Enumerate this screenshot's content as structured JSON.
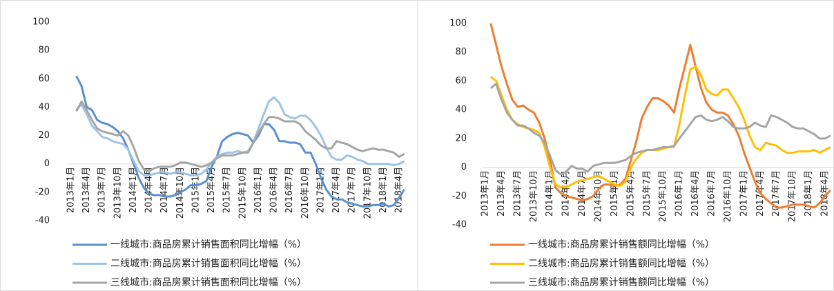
{
  "chart_data": [
    {
      "type": "line",
      "categories": [
        "2013年1月",
        null,
        null,
        "2013年4月",
        null,
        null,
        "2013年7月",
        null,
        null,
        "2013年10月",
        null,
        null,
        "2014年1月",
        null,
        null,
        "2014年4月",
        null,
        null,
        "2014年7月",
        null,
        null,
        "2014年10月",
        null,
        null,
        "2015年1月",
        null,
        null,
        "2015年4月",
        null,
        null,
        "2015年7月",
        null,
        null,
        "2015年10月",
        null,
        null,
        "2016年1月",
        null,
        null,
        "2016年4月",
        null,
        null,
        "2016年7月",
        null,
        null,
        "2016年10月",
        null,
        null,
        "2017年1月",
        null,
        null,
        "2017年4月",
        null,
        null,
        "2017年7月",
        null,
        null,
        "2017年10月",
        null,
        null,
        "2018年1月",
        null,
        null,
        "2018年4月",
        null
      ],
      "ylim": [
        -40,
        100
      ],
      "yticks": [
        -40,
        -20,
        0,
        20,
        40,
        60,
        80,
        100
      ],
      "series": [
        {
          "name": "一线城市:商品房累计销售面积同比增幅（%）",
          "color": "#5b8fcf",
          "values": [
            null,
            62,
            55,
            40,
            38,
            31,
            29,
            28,
            26,
            23,
            18,
            10,
            0,
            -10,
            -17,
            -21,
            -22,
            -22,
            -23,
            -23,
            -22,
            -20,
            -18,
            -15,
            -15,
            -14,
            -12,
            -2,
            5,
            16,
            19,
            21,
            22,
            21,
            20,
            15,
            20,
            28,
            28,
            24,
            16,
            16,
            15,
            15,
            14,
            8,
            8,
            0,
            -10,
            -18,
            -23,
            -25,
            -25,
            -27,
            -28,
            -29,
            -30,
            -30,
            -29,
            -29,
            -28,
            -30,
            -29,
            -24,
            -18
          ]
        },
        {
          "name": "二线城市:商品房累计销售面积同比增幅（%）",
          "color": "#9dc3e6",
          "values": [
            null,
            38,
            42,
            35,
            27,
            23,
            19,
            18,
            16,
            15,
            14,
            10,
            2,
            -5,
            -8,
            -8,
            -7,
            -6,
            -6,
            -7,
            -6,
            -6,
            -7,
            -8,
            -8,
            -7,
            -4,
            1,
            5,
            7,
            8,
            8,
            9,
            8,
            9,
            15,
            25,
            35,
            44,
            47,
            43,
            35,
            33,
            32,
            34,
            34,
            31,
            26,
            20,
            12,
            5,
            3,
            3,
            6,
            5,
            3,
            2,
            0,
            0,
            0,
            0,
            0,
            -1,
            0,
            2
          ]
        },
        {
          "name": "三线城市:商品房累计销售面积同比增幅（%）",
          "color": "#a5a5a5",
          "values": [
            null,
            37,
            44,
            38,
            31,
            25,
            23,
            22,
            21,
            20,
            23,
            20,
            12,
            2,
            -4,
            -5,
            -3,
            -2,
            -2,
            -2,
            -1,
            1,
            1,
            0,
            -1,
            -2,
            -1,
            1,
            4,
            6,
            6,
            6,
            7,
            8,
            8,
            15,
            22,
            28,
            33,
            33,
            32,
            30,
            30,
            30,
            28,
            23,
            20,
            17,
            13,
            11,
            11,
            16,
            15,
            14,
            12,
            10,
            9,
            10,
            11,
            10,
            10,
            9,
            8,
            5,
            7
          ]
        }
      ]
    },
    {
      "type": "line",
      "categories": [
        "2013年1月",
        null,
        null,
        "2013年4月",
        null,
        null,
        "2013年7月",
        null,
        null,
        "2013年10月",
        null,
        null,
        "2014年1月",
        null,
        null,
        "2014年4月",
        null,
        null,
        "2014年7月",
        null,
        null,
        "2014年10月",
        null,
        null,
        "2015年1月",
        null,
        null,
        "2015年4月",
        null,
        null,
        "2015年7月",
        null,
        null,
        "2015年10月",
        null,
        null,
        "2016年1月",
        null,
        null,
        "2016年4月",
        null,
        null,
        "2016年7月",
        null,
        null,
        "2016年10月",
        null,
        null,
        "2017年1月",
        null,
        null,
        "2017年4月",
        null,
        null,
        "2017年7月",
        null,
        null,
        "2017年10月",
        null,
        null,
        "2018年1月",
        null,
        null,
        "2018年4月",
        null
      ],
      "ylim": [
        -40,
        100
      ],
      "yticks": [
        -40,
        -20,
        0,
        20,
        40,
        60,
        80,
        100
      ],
      "series": [
        {
          "name": "一线城市:商品房累计销售额同比增幅（%）",
          "color": "#ed7d31",
          "values": [
            null,
            100,
            85,
            70,
            58,
            47,
            42,
            43,
            40,
            38,
            31,
            20,
            5,
            -14,
            -18,
            -20,
            -21,
            -22,
            -23,
            -22,
            -20,
            -15,
            -12,
            -12,
            -13,
            -12,
            -8,
            5,
            18,
            34,
            42,
            48,
            48,
            46,
            43,
            38,
            55,
            70,
            85,
            70,
            55,
            45,
            40,
            38,
            38,
            36,
            30,
            22,
            10,
            0,
            -10,
            -18,
            -22,
            -25,
            -28,
            -28,
            -27,
            -26,
            -26,
            -26,
            -27,
            -28,
            -25,
            -20,
            -16
          ]
        },
        {
          "name": "二线城市:商品房累计销售额同比增幅（%）",
          "color": "#ffc000",
          "values": [
            null,
            63,
            60,
            50,
            40,
            33,
            30,
            28,
            27,
            26,
            24,
            14,
            0,
            -12,
            -14,
            -14,
            -12,
            -10,
            -9,
            -8,
            -7,
            -6,
            -8,
            -10,
            -12,
            -13,
            -10,
            0,
            6,
            10,
            12,
            12,
            12,
            13,
            14,
            14,
            30,
            50,
            68,
            70,
            64,
            54,
            51,
            50,
            54,
            54,
            48,
            42,
            33,
            22,
            14,
            12,
            17,
            16,
            15,
            12,
            10,
            10,
            11,
            11,
            11,
            12,
            10,
            12,
            14
          ]
        },
        {
          "name": "三线城市:商品房累计销售额同比增幅（%）",
          "color": "#a5a5a5",
          "values": [
            null,
            55,
            58,
            47,
            38,
            33,
            29,
            29,
            27,
            24,
            22,
            17,
            8,
            -2,
            -5,
            -3,
            1,
            -1,
            -1,
            -3,
            1,
            2,
            3,
            3,
            3,
            4,
            5,
            8,
            10,
            11,
            12,
            12,
            13,
            14,
            14,
            15,
            20,
            25,
            30,
            35,
            36,
            33,
            32,
            33,
            35,
            32,
            28,
            27,
            27,
            28,
            31,
            29,
            28,
            36,
            35,
            33,
            31,
            28,
            27,
            27,
            25,
            23,
            20,
            20,
            22
          ]
        }
      ]
    }
  ]
}
